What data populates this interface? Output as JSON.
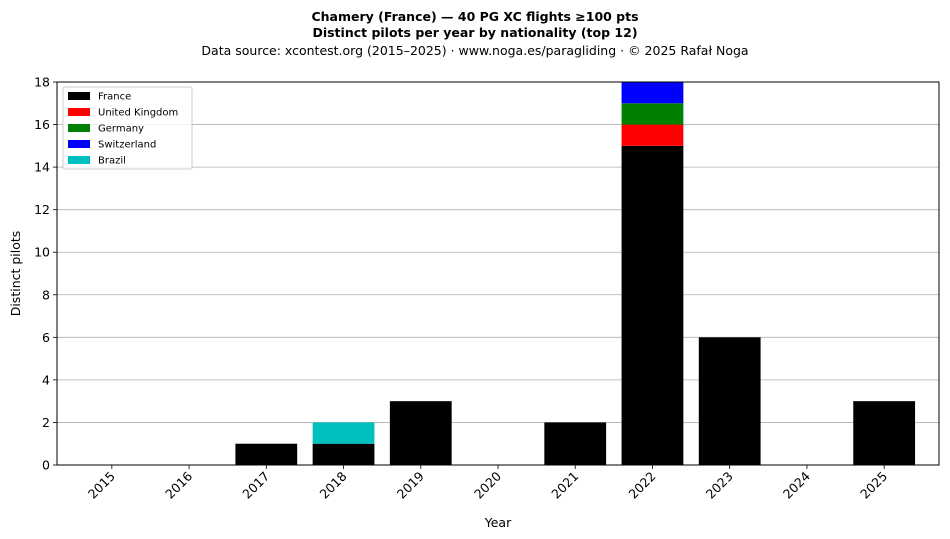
{
  "chart_data": {
    "type": "bar",
    "stacked": true,
    "title": "Chamery (France)  —  40 PG XC flights ≥100 pts",
    "subtitle": "Distinct pilots per year by nationality (top 12)",
    "source": "Data source: xcontest.org (2015–2025)  ·  www.noga.es/paragliding  ·  © 2025 Rafał Noga",
    "xlabel": "Year",
    "ylabel": "Distinct pilots",
    "ylim": [
      0,
      18
    ],
    "yticks": [
      0,
      2,
      4,
      6,
      8,
      10,
      12,
      14,
      16,
      18
    ],
    "grid": true,
    "legend_position": "top-left",
    "categories": [
      "2015",
      "2016",
      "2017",
      "2018",
      "2019",
      "2020",
      "2021",
      "2022",
      "2023",
      "2024",
      "2025"
    ],
    "series": [
      {
        "name": "France",
        "color": "#000000",
        "values": [
          0,
          0,
          1,
          1,
          3,
          0,
          2,
          15,
          6,
          0,
          3
        ]
      },
      {
        "name": "United Kingdom",
        "color": "#ff0000",
        "values": [
          0,
          0,
          0,
          0,
          0,
          0,
          0,
          1,
          0,
          0,
          0
        ]
      },
      {
        "name": "Germany",
        "color": "#008000",
        "values": [
          0,
          0,
          0,
          0,
          0,
          0,
          0,
          1,
          0,
          0,
          0
        ]
      },
      {
        "name": "Switzerland",
        "color": "#0000ff",
        "values": [
          0,
          0,
          0,
          0,
          0,
          0,
          0,
          1,
          0,
          0,
          0
        ]
      },
      {
        "name": "Brazil",
        "color": "#00bfbf",
        "values": [
          0,
          0,
          0,
          1,
          0,
          0,
          0,
          0,
          0,
          0,
          0
        ]
      }
    ]
  }
}
